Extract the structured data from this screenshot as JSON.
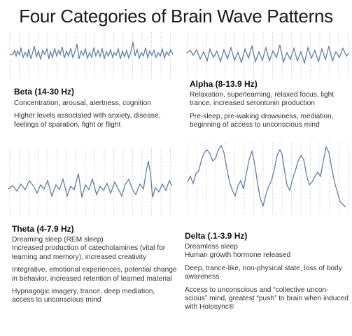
{
  "title": "Four Categories of Brain Wave Patterns",
  "colors": {
    "wave": "#5f7fa6",
    "grid": "#b5b5b5"
  },
  "panels": {
    "beta": {
      "heading": "Beta (14-30 Hz)",
      "paragraphs": [
        "Concentration, arousal, alertness, cognition",
        "Higher levels associated with anxiety, disease, feelings of sparation, fight or flight"
      ]
    },
    "alpha": {
      "heading": "Alpha (8-13.9 Hz)",
      "paragraphs": [
        "Relaxation, superlearning, relaxed focus, light trance, increased serontonin production",
        "Pre-sleep,  pre-waking drowsiness, mediation, beginning of access to unconscious mind"
      ]
    },
    "theta": {
      "heading": "Theta (4-7.9 Hz)",
      "paragraphs": [
        "Dreaming sleep (REM sleep)\nIncreased production of catecholamines (vital for learning and memory), increased creativity",
        "Integrative, emotional experiences, potential change in behavior, increased retention of learned material",
        "Hypnagogic imagery, trance, deep mediation, access to unconscious mind"
      ]
    },
    "delta": {
      "heading": "Delta (.1-3.9 Hz)",
      "paragraphs": [
        "Dreamless sleep\nHuman growth hormone released",
        "Deep, trance-like, non-physical state, loss of body awareness",
        "Access to unconscious and “collective uncon-scious” mind, greatest “push” to brain when induced with Holosync®"
      ]
    }
  }
}
